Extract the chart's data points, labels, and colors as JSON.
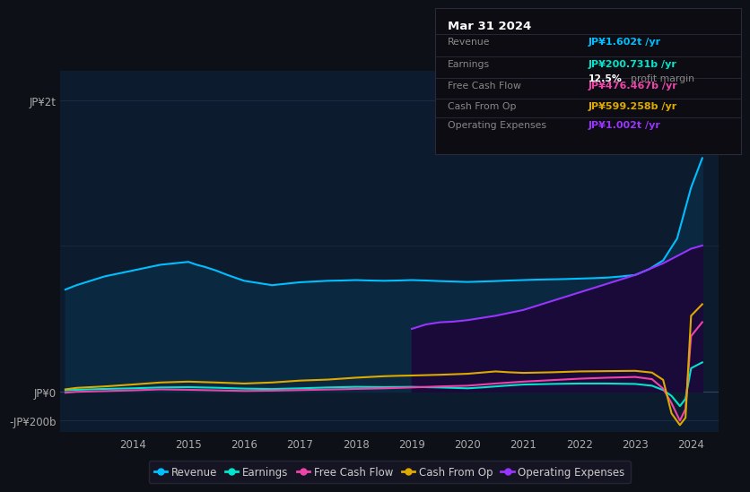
{
  "background_color": "#0d1117",
  "plot_bg_color": "#0d1b2e",
  "title_box": {
    "date": "Mar 31 2024",
    "revenue_label": "Revenue",
    "revenue_value": "JP¥1.602t /yr",
    "revenue_color": "#00bfff",
    "earnings_label": "Earnings",
    "earnings_value": "JP¥200.731b /yr",
    "earnings_color": "#00e5cc",
    "margin_value": "12.5%",
    "margin_text": " profit margin",
    "fcf_label": "Free Cash Flow",
    "fcf_value": "JP¥476.467b /yr",
    "fcf_color": "#ee44aa",
    "cashop_label": "Cash From Op",
    "cashop_value": "JP¥599.258b /yr",
    "cashop_color": "#ddaa00",
    "opex_label": "Operating Expenses",
    "opex_value": "JP¥1.002t /yr",
    "opex_color": "#9933ff"
  },
  "yticks_labels": [
    "JP¥2t",
    "JP¥0",
    "-JP¥200b"
  ],
  "ytick_values": [
    2000,
    0,
    -200
  ],
  "ylim": [
    -280,
    2200
  ],
  "xlim": [
    2012.7,
    2024.5
  ],
  "xtick_labels": [
    "2014",
    "2015",
    "2016",
    "2017",
    "2018",
    "2019",
    "2020",
    "2021",
    "2022",
    "2023",
    "2024"
  ],
  "xtick_values": [
    2014,
    2015,
    2016,
    2017,
    2018,
    2019,
    2020,
    2021,
    2022,
    2023,
    2024
  ],
  "legend": [
    {
      "label": "Revenue",
      "color": "#00bfff"
    },
    {
      "label": "Earnings",
      "color": "#00e5cc"
    },
    {
      "label": "Free Cash Flow",
      "color": "#ee44aa"
    },
    {
      "label": "Cash From Op",
      "color": "#ddaa00"
    },
    {
      "label": "Operating Expenses",
      "color": "#9933ff"
    }
  ],
  "revenue_x": [
    2012.8,
    2013.0,
    2013.25,
    2013.5,
    2013.75,
    2014.0,
    2014.25,
    2014.5,
    2014.75,
    2015.0,
    2015.15,
    2015.3,
    2015.5,
    2015.7,
    2016.0,
    2016.25,
    2016.5,
    2016.75,
    2017.0,
    2017.25,
    2017.5,
    2017.75,
    2018.0,
    2018.25,
    2018.5,
    2018.75,
    2019.0,
    2019.25,
    2019.5,
    2019.75,
    2020.0,
    2020.25,
    2020.5,
    2020.75,
    2021.0,
    2021.25,
    2021.5,
    2021.75,
    2022.0,
    2022.25,
    2022.5,
    2022.75,
    2023.0,
    2023.25,
    2023.5,
    2023.75,
    2024.0,
    2024.2
  ],
  "revenue_y": [
    700,
    730,
    760,
    790,
    810,
    830,
    850,
    870,
    880,
    890,
    870,
    855,
    830,
    800,
    760,
    745,
    730,
    740,
    750,
    755,
    760,
    762,
    765,
    762,
    760,
    762,
    765,
    762,
    758,
    755,
    752,
    755,
    758,
    762,
    765,
    768,
    770,
    772,
    775,
    778,
    782,
    790,
    800,
    840,
    900,
    1050,
    1400,
    1602
  ],
  "earnings_x": [
    2012.8,
    2013.0,
    2013.5,
    2014.0,
    2014.5,
    2015.0,
    2015.5,
    2016.0,
    2016.5,
    2017.0,
    2017.5,
    2018.0,
    2018.5,
    2019.0,
    2019.5,
    2020.0,
    2020.25,
    2020.5,
    2020.75,
    2021.0,
    2021.5,
    2022.0,
    2022.5,
    2023.0,
    2023.3,
    2023.5,
    2023.65,
    2023.8,
    2023.9,
    2024.0,
    2024.2
  ],
  "earnings_y": [
    8,
    12,
    18,
    22,
    28,
    30,
    26,
    20,
    17,
    22,
    28,
    32,
    30,
    32,
    28,
    22,
    28,
    35,
    42,
    48,
    52,
    55,
    55,
    52,
    40,
    10,
    -30,
    -100,
    -50,
    160,
    200
  ],
  "fcf_x": [
    2012.8,
    2013.0,
    2013.5,
    2014.0,
    2014.5,
    2015.0,
    2015.5,
    2016.0,
    2016.5,
    2017.0,
    2017.5,
    2018.0,
    2018.5,
    2019.0,
    2019.5,
    2020.0,
    2020.5,
    2021.0,
    2021.5,
    2022.0,
    2022.5,
    2023.0,
    2023.3,
    2023.5,
    2023.65,
    2023.8,
    2023.9,
    2024.0,
    2024.2
  ],
  "fcf_y": [
    -8,
    -2,
    3,
    8,
    15,
    12,
    8,
    4,
    6,
    10,
    14,
    18,
    22,
    28,
    35,
    40,
    55,
    68,
    78,
    88,
    95,
    100,
    85,
    20,
    -80,
    -200,
    -120,
    380,
    476
  ],
  "cashop_x": [
    2012.8,
    2013.0,
    2013.5,
    2014.0,
    2014.5,
    2015.0,
    2015.5,
    2016.0,
    2016.5,
    2017.0,
    2017.5,
    2018.0,
    2018.25,
    2018.5,
    2018.75,
    2019.0,
    2019.5,
    2020.0,
    2020.25,
    2020.5,
    2020.75,
    2021.0,
    2021.5,
    2022.0,
    2022.5,
    2023.0,
    2023.3,
    2023.5,
    2023.65,
    2023.8,
    2023.9,
    2024.0,
    2024.2
  ],
  "cashop_y": [
    15,
    25,
    35,
    48,
    62,
    68,
    62,
    55,
    62,
    75,
    82,
    95,
    100,
    105,
    108,
    110,
    115,
    122,
    130,
    138,
    132,
    128,
    132,
    138,
    140,
    142,
    130,
    80,
    -150,
    -230,
    -180,
    520,
    599
  ],
  "opex_x": [
    2019.0,
    2019.25,
    2019.5,
    2019.75,
    2020.0,
    2020.25,
    2020.5,
    2020.75,
    2021.0,
    2021.25,
    2021.5,
    2021.75,
    2022.0,
    2022.25,
    2022.5,
    2022.75,
    2023.0,
    2023.25,
    2023.5,
    2023.75,
    2024.0,
    2024.2
  ],
  "opex_y": [
    430,
    460,
    475,
    480,
    490,
    505,
    520,
    540,
    560,
    590,
    620,
    650,
    680,
    710,
    740,
    770,
    800,
    840,
    880,
    930,
    980,
    1002
  ]
}
